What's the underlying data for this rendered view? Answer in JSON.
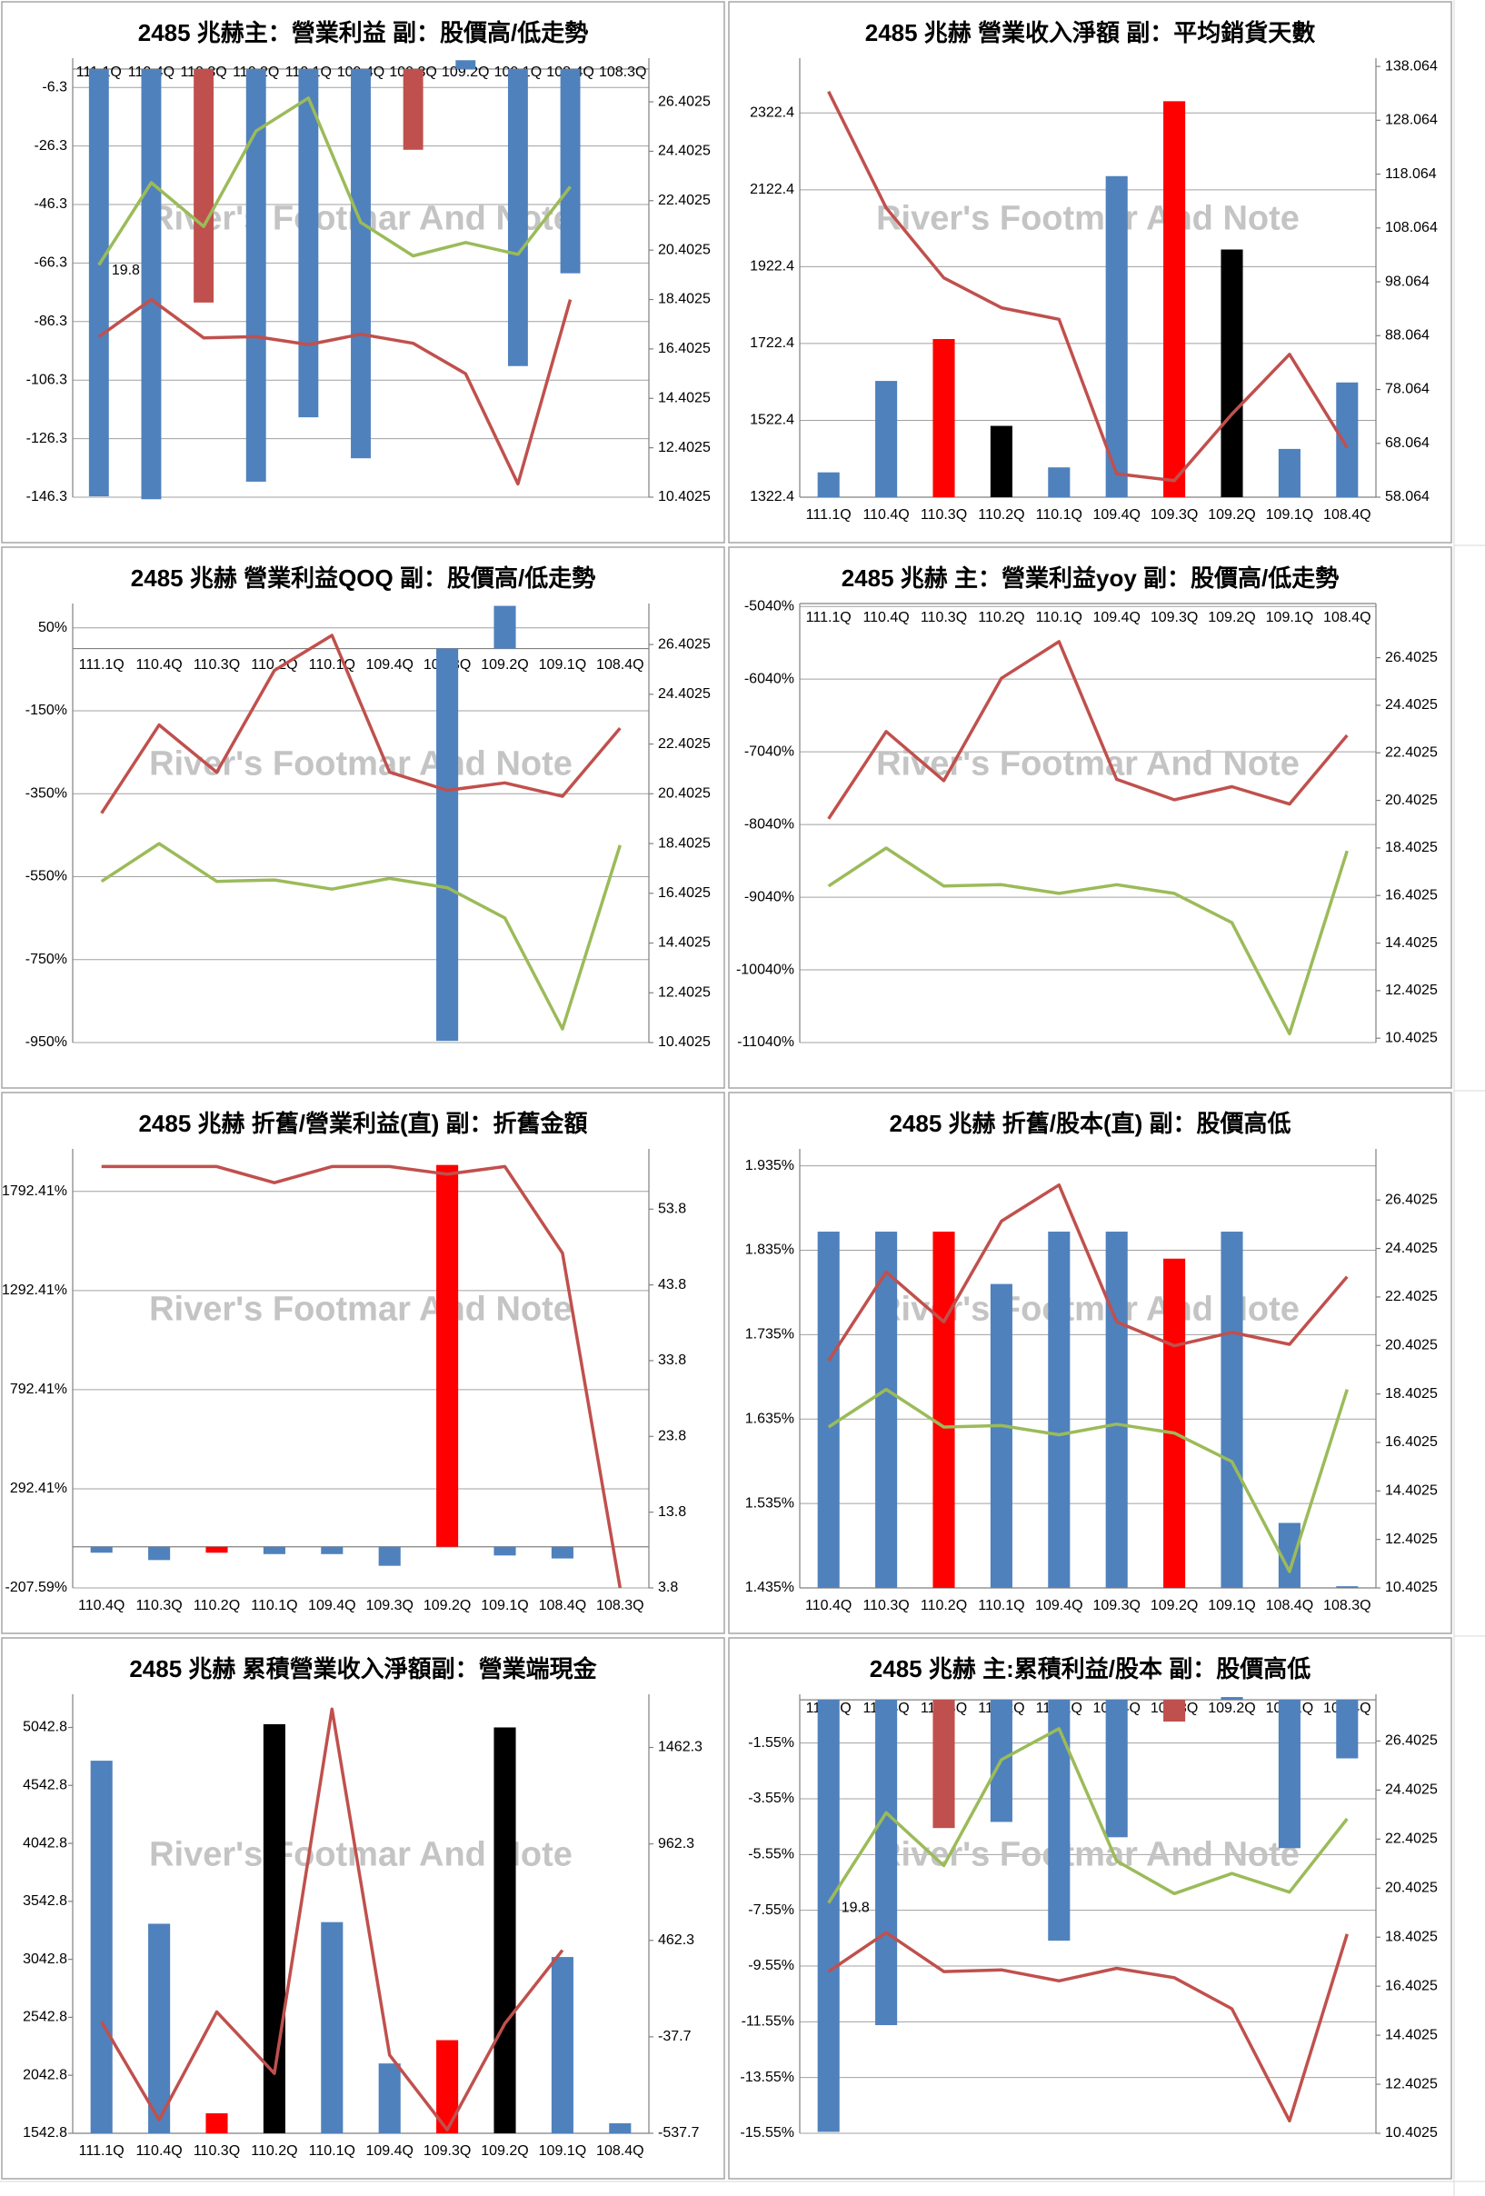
{
  "chart_data": [
    {
      "type": "combo",
      "title": "2485 兆赫主：營業利益 副：股價高/低走勢",
      "watermark": "River's Footmar And Note",
      "x_labels": "top",
      "categories": [
        "111.1Q",
        "110.4Q",
        "110.3Q",
        "110.2Q",
        "110.1Q",
        "109.4Q",
        "109.3Q",
        "109.2Q",
        "109.1Q",
        "108.4Q",
        "108.3Q"
      ],
      "ylim": [
        -146.3,
        3.7
      ],
      "yticks": [
        -6.3,
        -26.3,
        -46.3,
        -66.3,
        -86.3,
        -106.3,
        -126.3,
        -146.3
      ],
      "y2lim": [
        10.4025,
        28.17
      ],
      "y2ticks": [
        10.4025,
        12.4025,
        14.4025,
        16.4025,
        18.4025,
        20.4025,
        22.4025,
        24.4025,
        26.4025
      ],
      "grid": true,
      "series": [
        {
          "type": "bar",
          "values": [
            -146,
            -147,
            -79.8,
            -141,
            -119,
            -133,
            -27.6,
            3,
            -101.5,
            -69.8,
            null
          ],
          "colors": [
            "#4f81bd",
            "#4f81bd",
            "#c0504d",
            "#4f81bd",
            "#4f81bd",
            "#4f81bd",
            "#c0504d",
            "#4f81bd",
            "#4f81bd",
            "#4f81bd",
            "#4f81bd"
          ]
        },
        {
          "type": "line",
          "axis": "y2",
          "color": "#9bbb59",
          "values": [
            19.8,
            23.13,
            21.36,
            25.22,
            26.56,
            21.52,
            20.17,
            20.71,
            20.23,
            22.97,
            null
          ],
          "value_labels": [
            "19.8",
            null,
            null,
            null,
            null,
            null,
            null,
            null,
            null,
            null,
            null
          ]
        },
        {
          "type": "line",
          "axis": "y2",
          "color": "#c0504d",
          "values": [
            16.9,
            18.4,
            16.85,
            16.9,
            16.58,
            17.0,
            16.63,
            15.4,
            10.94,
            18.4,
            null
          ]
        }
      ]
    },
    {
      "type": "combo",
      "title": "2485 兆赫 營業收入淨額 副：平均銷貨天數",
      "watermark": "River's Footmar And Note",
      "x_labels": "bottom",
      "categories": [
        "111.1Q",
        "110.4Q",
        "110.3Q",
        "110.2Q",
        "110.1Q",
        "109.4Q",
        "109.3Q",
        "109.2Q",
        "109.1Q",
        "108.4Q"
      ],
      "ylim": [
        1322.4,
        2465
      ],
      "yticks": [
        1322.4,
        1522.4,
        1722.4,
        1922.4,
        2122.4,
        2322.4
      ],
      "y2lim": [
        58.064,
        139.6
      ],
      "y2ticks": [
        58.064,
        68.064,
        78.064,
        88.064,
        98.064,
        108.064,
        118.064,
        128.064,
        138.064
      ],
      "grid": true,
      "series": [
        {
          "type": "bar",
          "values": [
            1387,
            1625,
            1734,
            1508,
            1400,
            2158,
            2353,
            1967,
            1448,
            1621
          ],
          "colors": [
            "#4f81bd",
            "#4f81bd",
            "#ff0000",
            "#000000",
            "#4f81bd",
            "#4f81bd",
            "#ff0000",
            "#000000",
            "#4f81bd",
            "#4f81bd"
          ]
        },
        {
          "type": "line",
          "axis": "y2",
          "color": "#c0504d",
          "values": [
            133.4,
            111.8,
            98.8,
            93.25,
            91.1,
            62.4,
            61.15,
            73.5,
            84.6,
            67.3
          ]
        }
      ]
    },
    {
      "type": "combo",
      "title": "2485 兆赫 營業利益QOQ 副：股價高/低走勢",
      "watermark": "River's Footmar And Note",
      "x_labels": "zero",
      "categories": [
        "111.1Q",
        "110.4Q",
        "110.3Q",
        "110.2Q",
        "110.1Q",
        "109.4Q",
        "109.3Q",
        "109.2Q",
        "109.1Q",
        "108.4Q"
      ],
      "ylim": [
        -950,
        108.6
      ],
      "yticks": [
        {
          "value": 50,
          "label": "50%"
        },
        {
          "value": -150,
          "label": "-150%"
        },
        {
          "value": -350,
          "label": "-350%"
        },
        {
          "value": -550,
          "label": "-550%"
        },
        {
          "value": -750,
          "label": "-750%"
        },
        {
          "value": -950,
          "label": "-950%"
        }
      ],
      "y2lim": [
        10.4025,
        28.05
      ],
      "y2ticks": [
        10.4025,
        12.4025,
        14.4025,
        16.4025,
        18.4025,
        20.4025,
        22.4025,
        24.4025,
        26.4025
      ],
      "grid": true,
      "series": [
        {
          "type": "bar",
          "values": [
            null,
            null,
            null,
            null,
            null,
            null,
            -946,
            103,
            null,
            null
          ],
          "colors": [
            "#4f81bd",
            "#4f81bd",
            "#4f81bd",
            "#4f81bd",
            "#4f81bd",
            "#4f81bd",
            "#4f81bd",
            "#4f81bd",
            "#4f81bd",
            "#4f81bd"
          ]
        },
        {
          "type": "line",
          "axis": "y2",
          "color": "#c0504d",
          "values": [
            19.62,
            23.17,
            21.27,
            25.36,
            26.77,
            21.27,
            20.54,
            20.84,
            20.3,
            23.04
          ]
        },
        {
          "type": "line",
          "axis": "y2",
          "color": "#9bbb59",
          "values": [
            16.88,
            18.4,
            16.88,
            16.94,
            16.57,
            17.0,
            16.63,
            15.41,
            10.95,
            18.34
          ]
        }
      ]
    },
    {
      "type": "combo",
      "title": "2485 兆赫 主：營業利益yoy 副：股價高/低走勢",
      "watermark": "River's Footmar And Note",
      "x_labels": "top",
      "categories": [
        "111.1Q",
        "110.4Q",
        "110.3Q",
        "110.2Q",
        "110.1Q",
        "109.4Q",
        "109.3Q",
        "109.2Q",
        "109.1Q",
        "108.4Q"
      ],
      "ylim": [
        -11040,
        -5000
      ],
      "yticks": [
        {
          "value": -5040,
          "label": "-5040%"
        },
        {
          "value": -6040,
          "label": "-6040%"
        },
        {
          "value": -7040,
          "label": "-7040%"
        },
        {
          "value": -8040,
          "label": "-8040%"
        },
        {
          "value": -9040,
          "label": "-9040%"
        },
        {
          "value": -10040,
          "label": "-10040%"
        },
        {
          "value": -11040,
          "label": "-11040%"
        }
      ],
      "y2lim": [
        10.22,
        28.68
      ],
      "y2ticks": [
        10.4025,
        12.4025,
        14.4025,
        16.4025,
        18.4025,
        20.4025,
        22.4025,
        24.4025,
        26.4025
      ],
      "grid": true,
      "series": [
        {
          "type": "line",
          "axis": "y2",
          "color": "#c0504d",
          "values": [
            19.63,
            23.3,
            21.23,
            25.54,
            27.08,
            21.29,
            20.43,
            20.98,
            20.25,
            23.14
          ]
        },
        {
          "type": "line",
          "axis": "y2",
          "color": "#9bbb59",
          "values": [
            16.8,
            18.4,
            16.8,
            16.86,
            16.49,
            16.86,
            16.49,
            15.26,
            10.59,
            18.28
          ]
        }
      ]
    },
    {
      "type": "combo",
      "title": "2485 兆赫 折舊/營業利益(直) 副：折舊金額",
      "watermark": "River's Footmar And Note",
      "x_labels": "bottom",
      "categories": [
        "110.4Q",
        "110.3Q",
        "110.2Q",
        "110.1Q",
        "109.4Q",
        "109.3Q",
        "109.2Q",
        "109.1Q",
        "108.4Q",
        "108.3Q"
      ],
      "ylim": [
        -207.59,
        2007
      ],
      "yticks": [
        {
          "value": 1792.41,
          "label": "1792.41%"
        },
        {
          "value": 1292.41,
          "label": "1292.41%"
        },
        {
          "value": 792.41,
          "label": "792.41%"
        },
        {
          "value": 292.41,
          "label": "292.41%"
        },
        {
          "value": -207.59,
          "label": "-207.59%"
        }
      ],
      "y2lim": [
        3.8,
        61.75
      ],
      "y2ticks": [
        3.8,
        13.8,
        23.8,
        33.8,
        43.8,
        53.8
      ],
      "grid": true,
      "series": [
        {
          "type": "bar",
          "values": [
            -30,
            -67,
            -30,
            -37,
            -37,
            -96,
            1926,
            -44,
            -59,
            null
          ],
          "colors": [
            "#4f81bd",
            "#4f81bd",
            "#ff0000",
            "#4f81bd",
            "#4f81bd",
            "#4f81bd",
            "#ff0000",
            "#4f81bd",
            "#4f81bd",
            "#4f81bd"
          ]
        },
        {
          "type": "line",
          "axis": "y2",
          "color": "#c0504d",
          "values": [
            59.42,
            59.42,
            59.42,
            57.29,
            59.42,
            59.42,
            58.42,
            59.42,
            48.0,
            3.8
          ]
        }
      ]
    },
    {
      "type": "combo",
      "title": "2485 兆赫 折舊/股本(直) 副：股價高低",
      "watermark": "River's Footmar And Note",
      "x_labels": "bottom",
      "categories": [
        "110.4Q",
        "110.3Q",
        "110.2Q",
        "110.1Q",
        "109.4Q",
        "109.3Q",
        "109.2Q",
        "109.1Q",
        "108.4Q",
        "108.3Q"
      ],
      "ylim": [
        1.435,
        1.955
      ],
      "yticks": [
        {
          "value": 1.935,
          "label": "1.935%"
        },
        {
          "value": 1.835,
          "label": "1.835%"
        },
        {
          "value": 1.735,
          "label": "1.735%"
        },
        {
          "value": 1.635,
          "label": "1.635%"
        },
        {
          "value": 1.535,
          "label": "1.535%"
        },
        {
          "value": 1.435,
          "label": "1.435%"
        }
      ],
      "y2lim": [
        10.4025,
        28.51
      ],
      "y2ticks": [
        10.4025,
        12.4025,
        14.4025,
        16.4025,
        18.4025,
        20.4025,
        22.4025,
        24.4025,
        26.4025
      ],
      "grid": true,
      "series": [
        {
          "type": "bar",
          "values": [
            1.857,
            1.857,
            1.857,
            1.795,
            1.857,
            1.857,
            1.825,
            1.857,
            1.512,
            1.437
          ],
          "colors": [
            "#4f81bd",
            "#4f81bd",
            "#ff0000",
            "#4f81bd",
            "#4f81bd",
            "#4f81bd",
            "#ff0000",
            "#4f81bd",
            "#4f81bd",
            "#4f81bd"
          ]
        },
        {
          "type": "line",
          "axis": "y2",
          "color": "#c0504d",
          "values": [
            19.77,
            23.43,
            21.38,
            25.53,
            27.02,
            21.38,
            20.39,
            20.94,
            20.45,
            23.24
          ]
        },
        {
          "type": "line",
          "axis": "y2",
          "color": "#9bbb59",
          "values": [
            17.04,
            18.59,
            17.04,
            17.1,
            16.72,
            17.16,
            16.79,
            15.61,
            11.08,
            18.59
          ]
        }
      ]
    },
    {
      "type": "combo",
      "title": "2485 兆赫 累積營業收入淨額副：營業端現金",
      "watermark": "River's Footmar And Note",
      "x_labels": "bottom",
      "categories": [
        "111.1Q",
        "110.4Q",
        "110.3Q",
        "110.2Q",
        "110.1Q",
        "109.4Q",
        "109.3Q",
        "109.2Q",
        "109.1Q",
        "108.4Q"
      ],
      "ylim": [
        1542.8,
        5329
      ],
      "yticks": [
        1542.8,
        2042.8,
        2542.8,
        3042.8,
        3542.8,
        4042.8,
        4542.8,
        5042.8
      ],
      "y2lim": [
        -537.7,
        1738
      ],
      "y2ticks": [
        -537.7,
        -37.7,
        462.3,
        962.3,
        1462.3
      ],
      "grid": false,
      "series": [
        {
          "type": "bar",
          "values": [
            4756,
            3350,
            1715,
            5071,
            3364,
            2145,
            2346,
            5043,
            3063,
            1629
          ],
          "colors": [
            "#4f81bd",
            "#4f81bd",
            "#ff0000",
            "#000000",
            "#4f81bd",
            "#4f81bd",
            "#ff0000",
            "#000000",
            "#4f81bd",
            "#4f81bd"
          ]
        },
        {
          "type": "line",
          "axis": "y2",
          "color": "#c0504d",
          "values": [
            40,
            -468,
            92,
            -227,
            1661,
            -132,
            -520,
            31,
            411,
            null
          ]
        }
      ]
    },
    {
      "type": "combo",
      "title": "2485 兆赫 主:累積利益/股本 副：股價高低",
      "watermark": "River's Footmar And Note",
      "x_labels": "top",
      "categories": [
        "111.1Q",
        "110.4Q",
        "110.3Q",
        "110.2Q",
        "110.1Q",
        "109.4Q",
        "109.3Q",
        "109.2Q",
        "109.1Q",
        "108.4Q"
      ],
      "ylim": [
        -15.55,
        0.2
      ],
      "yticks": [
        {
          "value": -1.55,
          "label": "-1.55%"
        },
        {
          "value": -3.55,
          "label": "-3.55%"
        },
        {
          "value": -5.55,
          "label": "-5.55%"
        },
        {
          "value": -7.55,
          "label": "-7.55%"
        },
        {
          "value": -9.55,
          "label": "-9.55%"
        },
        {
          "value": -11.55,
          "label": "-11.55%"
        },
        {
          "value": -13.55,
          "label": "-13.55%"
        },
        {
          "value": -15.55,
          "label": "-15.55%"
        }
      ],
      "y2lim": [
        10.4025,
        28.31
      ],
      "y2ticks": [
        10.4025,
        12.4025,
        14.4025,
        16.4025,
        18.4025,
        20.4025,
        22.4025,
        24.4025,
        26.4025
      ],
      "grid": true,
      "series": [
        {
          "type": "bar",
          "values": [
            -15.5,
            -11.67,
            -4.6,
            -4.38,
            -8.64,
            -4.93,
            -0.78,
            0.1,
            -5.32,
            -2.1
          ],
          "colors": [
            "#4f81bd",
            "#4f81bd",
            "#c0504d",
            "#4f81bd",
            "#4f81bd",
            "#4f81bd",
            "#c0504d",
            "#4f81bd",
            "#4f81bd",
            "#4f81bd"
          ]
        },
        {
          "type": "line",
          "axis": "y2",
          "color": "#9bbb59",
          "values": [
            19.8,
            23.48,
            21.32,
            25.64,
            26.91,
            21.51,
            20.18,
            21.0,
            20.24,
            23.23
          ],
          "value_labels": [
            "19.8",
            null,
            null,
            null,
            null,
            null,
            null,
            null,
            null,
            null
          ]
        },
        {
          "type": "line",
          "axis": "y2",
          "color": "#c0504d",
          "values": [
            17.0,
            18.59,
            17.0,
            17.07,
            16.62,
            17.13,
            16.75,
            15.48,
            10.91,
            18.53
          ]
        }
      ]
    }
  ]
}
